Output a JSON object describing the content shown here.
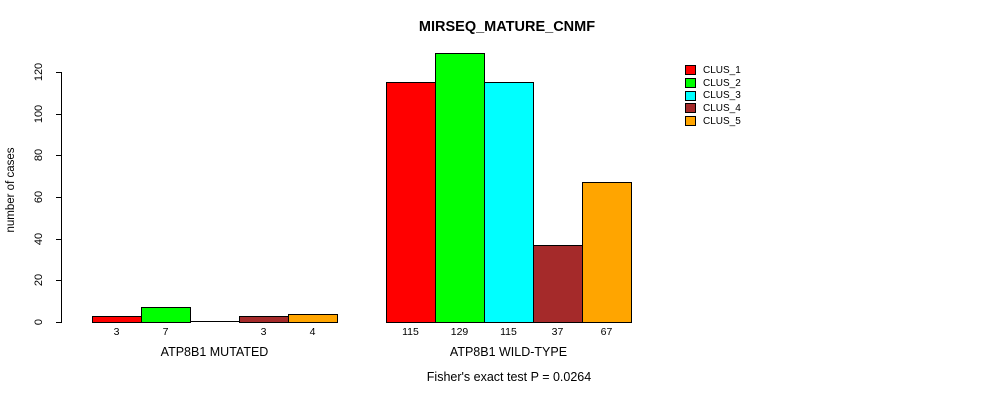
{
  "title": "MIRSEQ_MATURE_CNMF",
  "footer": "Fisher's exact test P = 0.0264",
  "chart_data": {
    "type": "bar",
    "title": "MIRSEQ_MATURE_CNMF",
    "xlabel": "",
    "ylabel": "number of cases",
    "categories": [
      "ATP8B1 MUTATED",
      "ATP8B1 WILD-TYPE"
    ],
    "series": [
      {
        "name": "CLUS_1",
        "color": "#FF0000",
        "values": [
          3,
          115
        ]
      },
      {
        "name": "CLUS_2",
        "color": "#00FF00",
        "values": [
          7,
          129
        ]
      },
      {
        "name": "CLUS_3",
        "color": "#00FFFF",
        "values": [
          0,
          115
        ]
      },
      {
        "name": "CLUS_4",
        "color": "#A52A2A",
        "values": [
          3,
          37
        ]
      },
      {
        "name": "CLUS_5",
        "color": "#FFA500",
        "values": [
          4,
          67
        ]
      }
    ],
    "bar_value_labels": {
      "ATP8B1 MUTATED": [
        3,
        7,
        0,
        3,
        4
      ],
      "ATP8B1 WILD-TYPE": [
        115,
        129,
        115,
        37,
        67
      ]
    },
    "zero_values_drawn_as_flat_line": true,
    "yticks": [
      0,
      20,
      40,
      60,
      80,
      100,
      120
    ],
    "ylim": [
      0,
      120
    ],
    "grid": false,
    "legend_position": "top-right",
    "legend_entries": [
      "CLUS_1",
      "CLUS_2",
      "CLUS_3",
      "CLUS_4",
      "CLUS_5"
    ],
    "annotation": "Fisher's exact test P = 0.0264"
  },
  "legend": {
    "entries": [
      {
        "label": "CLUS_1",
        "color": "#FF0000"
      },
      {
        "label": "CLUS_2",
        "color": "#00FF00"
      },
      {
        "label": "CLUS_3",
        "color": "#00FFFF"
      },
      {
        "label": "CLUS_4",
        "color": "#A52A2A"
      },
      {
        "label": "CLUS_5",
        "color": "#FFA500"
      }
    ]
  }
}
